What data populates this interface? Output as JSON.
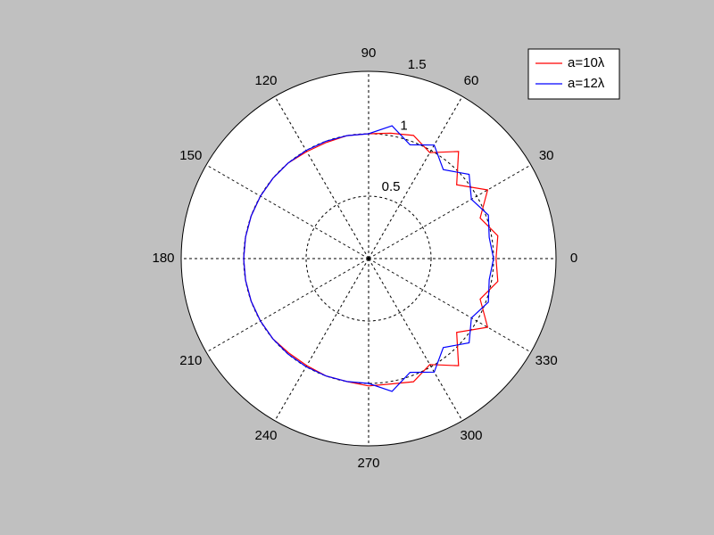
{
  "chart_data": {
    "type": "polar",
    "theta": [
      0,
      10,
      20,
      30,
      40,
      50,
      60,
      70,
      80,
      90,
      100,
      110,
      120,
      130,
      140,
      150,
      160,
      170,
      180,
      190,
      200,
      210,
      220,
      230,
      240,
      250,
      260,
      270,
      280,
      290,
      300,
      310,
      320,
      330,
      340,
      350
    ],
    "series": [
      {
        "name": "a=10λ",
        "color": "#ff0000",
        "values": [
          1.02,
          1.05,
          0.95,
          1.1,
          0.92,
          1.12,
          0.98,
          1.05,
          1.02,
          1.0,
          1.0,
          0.99,
          0.99,
          1.0,
          1.0,
          1.0,
          1.0,
          1.0,
          1.0,
          1.0,
          1.0,
          1.0,
          1.0,
          0.99,
          0.99,
          1.0,
          1.0,
          1.02,
          1.02,
          1.05,
          0.98,
          1.12,
          0.92,
          1.1,
          0.95,
          1.05
        ]
      },
      {
        "name": "a=12λ",
        "color": "#0000ff",
        "values": [
          1.0,
          0.98,
          1.02,
          0.95,
          1.05,
          0.93,
          1.05,
          0.97,
          1.08,
          1.0,
          1.0,
          1.0,
          1.0,
          1.0,
          1.0,
          1.0,
          1.0,
          1.0,
          1.0,
          1.0,
          1.0,
          1.0,
          1.0,
          1.0,
          1.0,
          1.0,
          1.0,
          1.0,
          1.08,
          0.97,
          1.05,
          0.93,
          1.05,
          0.95,
          1.02,
          0.98
        ]
      }
    ],
    "rlim": [
      0,
      1.5
    ],
    "rticks": [
      0.5,
      1,
      1.5
    ],
    "thetaticks": [
      0,
      30,
      60,
      90,
      120,
      150,
      180,
      210,
      240,
      270,
      300,
      330
    ],
    "grid": true,
    "legend": "northeast"
  }
}
